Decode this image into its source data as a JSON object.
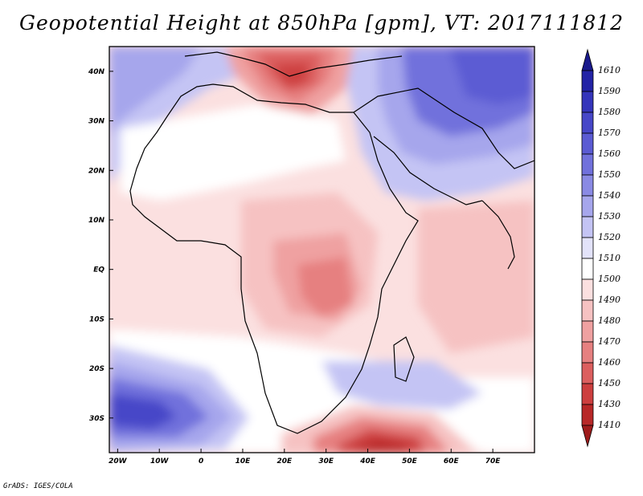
{
  "title": "Geopotential Height at 850hPa [gpm], VT: 2017111812",
  "credit": "GrADS: IGES/COLA",
  "map": {
    "lon_range": [
      -22,
      80
    ],
    "lat_range": [
      -37,
      45
    ],
    "x_ticks": [
      "20W",
      "10W",
      "0",
      "10E",
      "20E",
      "30E",
      "40E",
      "50E",
      "60E",
      "70E"
    ],
    "y_ticks": [
      "40N",
      "30N",
      "20N",
      "10N",
      "EQ",
      "10S",
      "20S",
      "30S"
    ]
  },
  "colorbar": {
    "levels": [
      "1610",
      "1590",
      "1580",
      "1570",
      "1560",
      "1550",
      "1540",
      "1530",
      "1520",
      "1510",
      "1500",
      "1490",
      "1480",
      "1470",
      "1460",
      "1450",
      "1430",
      "1410"
    ],
    "colors": [
      "#1a1a8c",
      "#2323a6",
      "#3535bb",
      "#4747c8",
      "#5b5bd3",
      "#7171dc",
      "#8a8ae4",
      "#a6a6ec",
      "#c4c4f4",
      "#e3e3fa",
      "#ffffff",
      "#fbe0e0",
      "#f6c2c2",
      "#efa1a1",
      "#e68080",
      "#dc5f5f",
      "#cd3f3f",
      "#b82828",
      "#9e1b1b"
    ]
  }
}
